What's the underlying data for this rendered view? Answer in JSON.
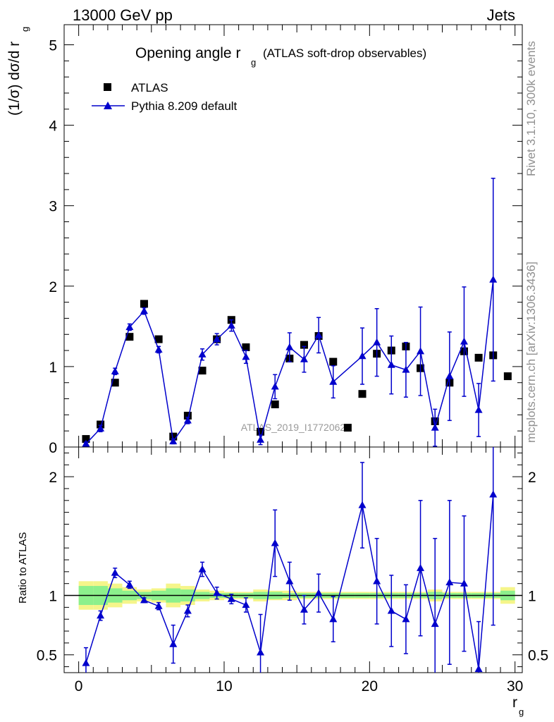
{
  "header": {
    "energy": "13000 GeV pp",
    "category": "Jets"
  },
  "side_text": {
    "rivet": "Rivet 3.1.10,  300k events",
    "mcplots": "mcplots.cern.ch [arXiv:1306.3436]"
  },
  "chart_data": [
    {
      "type": "scatter",
      "title": "Opening angle r_g (ATLAS soft-drop observables)",
      "title_main": "Opening angle r",
      "title_sub": "g",
      "title_tail": "(ATLAS soft-drop observables)",
      "ylabel_main": "(1/σ) dσ/d r",
      "ylabel_sub": "g",
      "watermark": "ATLAS_2019_I1772062",
      "xlim": [
        -1,
        30.5
      ],
      "ylim": [
        0,
        5.25
      ],
      "y_ticks": [
        0,
        1,
        2,
        3,
        4,
        5
      ],
      "y_tick_labels": [
        "0",
        "1",
        "2",
        "3",
        "4",
        "5"
      ],
      "legend_position": "top-left",
      "series": [
        {
          "name": "ATLAS",
          "color": "#000000",
          "marker": "square",
          "x": [
            0.5,
            1.5,
            2.5,
            3.5,
            4.5,
            5.5,
            6.5,
            7.5,
            8.5,
            9.5,
            10.5,
            11.5,
            12.5,
            13.5,
            14.5,
            15.5,
            16.5,
            17.5,
            18.5,
            19.5,
            20.5,
            21.5,
            22.5,
            23.5,
            24.5,
            25.5,
            26.5,
            27.5,
            28.5,
            29.5
          ],
          "y": [
            0.1,
            0.28,
            0.8,
            1.37,
            1.78,
            1.34,
            0.13,
            0.39,
            0.95,
            1.34,
            1.58,
            1.24,
            0.19,
            0.53,
            1.1,
            1.27,
            1.38,
            1.06,
            0.24,
            0.66,
            1.16,
            1.2,
            1.25,
            0.98,
            0.32,
            0.8,
            1.19,
            1.11,
            1.14,
            0.88
          ]
        },
        {
          "name": "Pythia 8.209 default",
          "color": "#0000cc",
          "marker": "triangle",
          "x": [
            0.5,
            1.5,
            2.5,
            3.5,
            4.5,
            5.5,
            6.5,
            7.5,
            8.5,
            9.5,
            10.5,
            11.5,
            12.5,
            13.5,
            14.5,
            15.5,
            16.5,
            17.5,
            19.5,
            20.5,
            21.5,
            22.5,
            23.5,
            24.5,
            25.5,
            26.5,
            27.5,
            28.5
          ],
          "y": [
            0.04,
            0.23,
            0.94,
            1.49,
            1.69,
            1.21,
            0.07,
            0.33,
            1.15,
            1.34,
            1.51,
            1.12,
            0.09,
            0.75,
            1.24,
            1.09,
            1.39,
            0.81,
            1.13,
            1.3,
            1.02,
            0.96,
            1.19,
            0.24,
            0.88,
            1.31,
            0.46,
            2.08
          ],
          "err": [
            0.02,
            0.04,
            0.04,
            0.04,
            0.04,
            0.04,
            0.03,
            0.04,
            0.07,
            0.07,
            0.07,
            0.08,
            0.06,
            0.15,
            0.18,
            0.16,
            0.22,
            0.2,
            0.35,
            0.42,
            0.36,
            0.34,
            0.55,
            0.23,
            0.55,
            0.68,
            0.33,
            1.26
          ]
        }
      ]
    },
    {
      "type": "line",
      "ylabel": "Ratio to ATLAS",
      "xlabel_main": "r",
      "xlabel_sub": "g",
      "xlim": [
        -1,
        30.5
      ],
      "ylim": [
        0.35,
        2.25
      ],
      "x_ticks": [
        0,
        10,
        20,
        30
      ],
      "x_tick_labels": [
        "0",
        "10",
        "20",
        "30"
      ],
      "y_ticks": [
        0.5,
        1,
        2
      ],
      "y_tick_labels": [
        "0.5",
        "1",
        "2"
      ],
      "reference_line": 1.0,
      "band_colors": {
        "inner": "#8cf08c",
        "outer": "#f5f58a"
      },
      "band_inner": [
        0.08,
        0.08,
        0.06,
        0.04,
        0.03,
        0.04,
        0.06,
        0.05,
        0.03,
        0.02,
        0.02,
        0.02,
        0.03,
        0.03,
        0.02,
        0.02,
        0.02,
        0.02,
        0.02,
        0.02,
        0.02,
        0.02,
        0.02,
        0.02,
        0.03,
        0.02,
        0.02,
        0.02,
        0.02,
        0.04
      ],
      "band_outer": [
        0.12,
        0.12,
        0.1,
        0.07,
        0.05,
        0.06,
        0.1,
        0.08,
        0.05,
        0.04,
        0.03,
        0.03,
        0.05,
        0.04,
        0.04,
        0.03,
        0.03,
        0.03,
        0.03,
        0.03,
        0.03,
        0.03,
        0.03,
        0.03,
        0.05,
        0.03,
        0.03,
        0.03,
        0.03,
        0.07
      ],
      "series": [
        {
          "name": "Pythia 8.209 default",
          "color": "#0000cc",
          "marker": "triangle",
          "x": [
            0.5,
            1.5,
            2.5,
            3.5,
            4.5,
            5.5,
            6.5,
            7.5,
            8.5,
            9.5,
            10.5,
            11.5,
            12.5,
            13.5,
            14.5,
            15.5,
            16.5,
            17.5,
            19.5,
            20.5,
            21.5,
            22.5,
            23.5,
            24.5,
            25.5,
            26.5,
            27.5,
            28.5
          ],
          "y": [
            0.43,
            0.83,
            1.19,
            1.09,
            0.96,
            0.91,
            0.59,
            0.87,
            1.22,
            1.02,
            0.97,
            0.92,
            0.52,
            1.44,
            1.12,
            0.88,
            1.02,
            0.8,
            1.76,
            1.12,
            0.87,
            0.8,
            1.23,
            0.76,
            1.11,
            1.1,
            0.38,
            1.85
          ],
          "err": [
            0.13,
            0.04,
            0.04,
            0.03,
            0.02,
            0.03,
            0.16,
            0.05,
            0.06,
            0.05,
            0.04,
            0.06,
            0.32,
            0.28,
            0.16,
            0.12,
            0.16,
            0.19,
            0.36,
            0.36,
            0.3,
            0.29,
            0.57,
            0.72,
            0.69,
            0.57,
            0.4,
            1.1
          ]
        }
      ]
    }
  ]
}
